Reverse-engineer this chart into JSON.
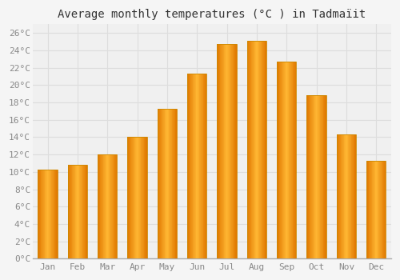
{
  "title": "Average monthly temperatures (°C ) in Tadmaïit",
  "months": [
    "Jan",
    "Feb",
    "Mar",
    "Apr",
    "May",
    "Jun",
    "Jul",
    "Aug",
    "Sep",
    "Oct",
    "Nov",
    "Dec"
  ],
  "values": [
    10.3,
    10.8,
    12.0,
    14.0,
    17.3,
    21.3,
    24.7,
    25.1,
    22.7,
    18.8,
    14.3,
    11.3
  ],
  "bar_color_light": "#FFB733",
  "bar_color_main": "#FFA500",
  "bar_color_dark": "#E07800",
  "bar_edge_color": "#CC8800",
  "ylim": [
    0,
    27
  ],
  "yticks": [
    0,
    2,
    4,
    6,
    8,
    10,
    12,
    14,
    16,
    18,
    20,
    22,
    24,
    26
  ],
  "background_color": "#f5f5f5",
  "plot_bg_color": "#f0f0f0",
  "grid_color": "#dddddd",
  "title_fontsize": 10,
  "tick_fontsize": 8,
  "tick_color": "#888888",
  "font_family": "monospace"
}
